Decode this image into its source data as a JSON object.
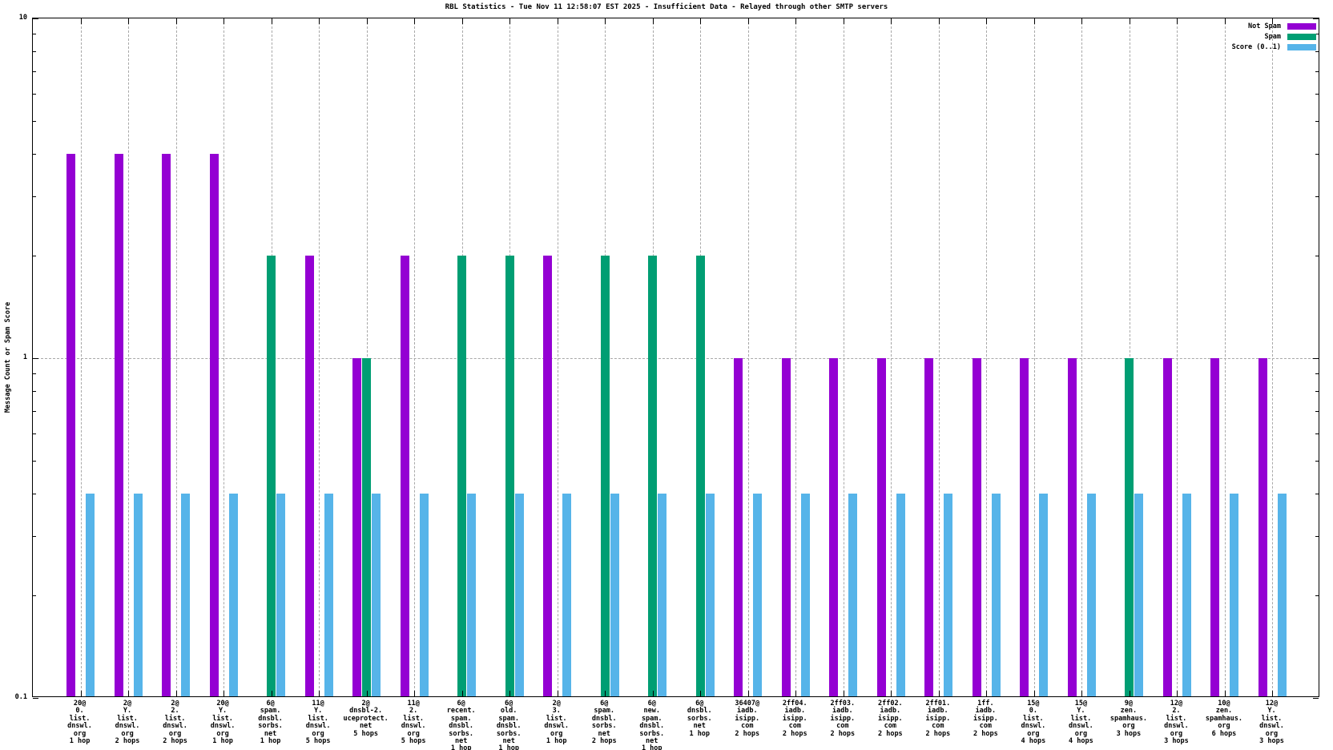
{
  "title": "RBL Statistics - Tue Nov 11 12:58:07 EST 2025 - Insufficient Data - Relayed through other SMTP servers",
  "y_axis_title": "Message Count or Spam Score",
  "legend": {
    "position": "top-right",
    "entries": [
      "Not Spam",
      "Spam",
      "Score (0..1)"
    ]
  },
  "chart_data": {
    "type": "bar",
    "yscale": "log",
    "ylim": [
      0.1,
      10
    ],
    "y_tick_labels": [
      "10",
      "1",
      "0.1"
    ],
    "y_tick_values": [
      10,
      1,
      0.1
    ],
    "grid": {
      "vertical_dashed_per_group": true,
      "horizontal_dotted_at": 1
    },
    "series": [
      {
        "name": "Not Spam",
        "key": "not_spam",
        "color": "#9400d3"
      },
      {
        "name": "Spam",
        "key": "spam",
        "color": "#009e73"
      },
      {
        "name": "Score (0..1)",
        "key": "score",
        "color": "#56b4e9"
      }
    ],
    "groups": [
      {
        "label_lines": [
          "20@",
          "0.",
          "list.",
          "dnswl.",
          "org",
          "1 hop"
        ],
        "not_spam": 4,
        "spam": 0,
        "score": 0.4
      },
      {
        "label_lines": [
          "2@",
          "Y.",
          "list.",
          "dnswl.",
          "org",
          "2 hops"
        ],
        "not_spam": 4,
        "spam": 0,
        "score": 0.4
      },
      {
        "label_lines": [
          "2@",
          "2.",
          "list.",
          "dnswl.",
          "org",
          "2 hops"
        ],
        "not_spam": 4,
        "spam": 0,
        "score": 0.4
      },
      {
        "label_lines": [
          "20@",
          "Y.",
          "list.",
          "dnswl.",
          "org",
          "1 hop"
        ],
        "not_spam": 4,
        "spam": 0,
        "score": 0.4
      },
      {
        "label_lines": [
          "6@",
          "spam.",
          "dnsbl.",
          "sorbs.",
          "net",
          "1 hop"
        ],
        "not_spam": 0,
        "spam": 2,
        "score": 0.4
      },
      {
        "label_lines": [
          "11@",
          "Y.",
          "list.",
          "dnswl.",
          "org",
          "5 hops"
        ],
        "not_spam": 2,
        "spam": 0,
        "score": 0.4
      },
      {
        "label_lines": [
          "2@",
          "dnsbl-2.",
          "uceprotect.",
          "net",
          "5 hops"
        ],
        "not_spam": 1,
        "spam": 1,
        "score": 0.4
      },
      {
        "label_lines": [
          "11@",
          "2.",
          "list.",
          "dnswl.",
          "org",
          "5 hops"
        ],
        "not_spam": 2,
        "spam": 0,
        "score": 0.4
      },
      {
        "label_lines": [
          "6@",
          "recent.",
          "spam.",
          "dnsbl.",
          "sorbs.",
          "net",
          "1 hop"
        ],
        "not_spam": 0,
        "spam": 2,
        "score": 0.4
      },
      {
        "label_lines": [
          "6@",
          "old.",
          "spam.",
          "dnsbl.",
          "sorbs.",
          "net",
          "1 hop"
        ],
        "not_spam": 0,
        "spam": 2,
        "score": 0.4
      },
      {
        "label_lines": [
          "2@",
          "3.",
          "list.",
          "dnswl.",
          "org",
          "1 hop"
        ],
        "not_spam": 2,
        "spam": 0,
        "score": 0.4
      },
      {
        "label_lines": [
          "6@",
          "spam.",
          "dnsbl.",
          "sorbs.",
          "net",
          "2 hops"
        ],
        "not_spam": 0,
        "spam": 2,
        "score": 0.4
      },
      {
        "label_lines": [
          "6@",
          "new.",
          "spam.",
          "dnsbl.",
          "sorbs.",
          "net",
          "1 hop"
        ],
        "not_spam": 0,
        "spam": 2,
        "score": 0.4
      },
      {
        "label_lines": [
          "6@",
          "dnsbl.",
          "sorbs.",
          "net",
          "1 hop"
        ],
        "not_spam": 0,
        "spam": 2,
        "score": 0.4
      },
      {
        "label_lines": [
          "36407@",
          "iadb.",
          "isipp.",
          "com",
          "2 hops"
        ],
        "not_spam": 1,
        "spam": 0,
        "score": 0.4
      },
      {
        "label_lines": [
          "2ff04.",
          "iadb.",
          "isipp.",
          "com",
          "2 hops"
        ],
        "not_spam": 1,
        "spam": 0,
        "score": 0.4
      },
      {
        "label_lines": [
          "2ff03.",
          "iadb.",
          "isipp.",
          "com",
          "2 hops"
        ],
        "not_spam": 1,
        "spam": 0,
        "score": 0.4
      },
      {
        "label_lines": [
          "2ff02.",
          "iadb.",
          "isipp.",
          "com",
          "2 hops"
        ],
        "not_spam": 1,
        "spam": 0,
        "score": 0.4
      },
      {
        "label_lines": [
          "2ff01.",
          "iadb.",
          "isipp.",
          "com",
          "2 hops"
        ],
        "not_spam": 1,
        "spam": 0,
        "score": 0.4
      },
      {
        "label_lines": [
          "1ff.",
          "iadb.",
          "isipp.",
          "com",
          "2 hops"
        ],
        "not_spam": 1,
        "spam": 0,
        "score": 0.4
      },
      {
        "label_lines": [
          "15@",
          "0.",
          "list.",
          "dnswl.",
          "org",
          "4 hops"
        ],
        "not_spam": 1,
        "spam": 0,
        "score": 0.4
      },
      {
        "label_lines": [
          "15@",
          "Y.",
          "list.",
          "dnswl.",
          "org",
          "4 hops"
        ],
        "not_spam": 1,
        "spam": 0,
        "score": 0.4
      },
      {
        "label_lines": [
          "9@",
          "zen.",
          "spamhaus.",
          "org",
          "3 hops"
        ],
        "not_spam": 0,
        "spam": 1,
        "score": 0.4
      },
      {
        "label_lines": [
          "12@",
          "2.",
          "list.",
          "dnswl.",
          "org",
          "3 hops"
        ],
        "not_spam": 1,
        "spam": 0,
        "score": 0.4
      },
      {
        "label_lines": [
          "10@",
          "zen.",
          "spamhaus.",
          "org",
          "6 hops"
        ],
        "not_spam": 1,
        "spam": 0,
        "score": 0.4
      },
      {
        "label_lines": [
          "12@",
          "Y.",
          "list.",
          "dnswl.",
          "org",
          "3 hops"
        ],
        "not_spam": 1,
        "spam": 0,
        "score": 0.4
      }
    ]
  }
}
